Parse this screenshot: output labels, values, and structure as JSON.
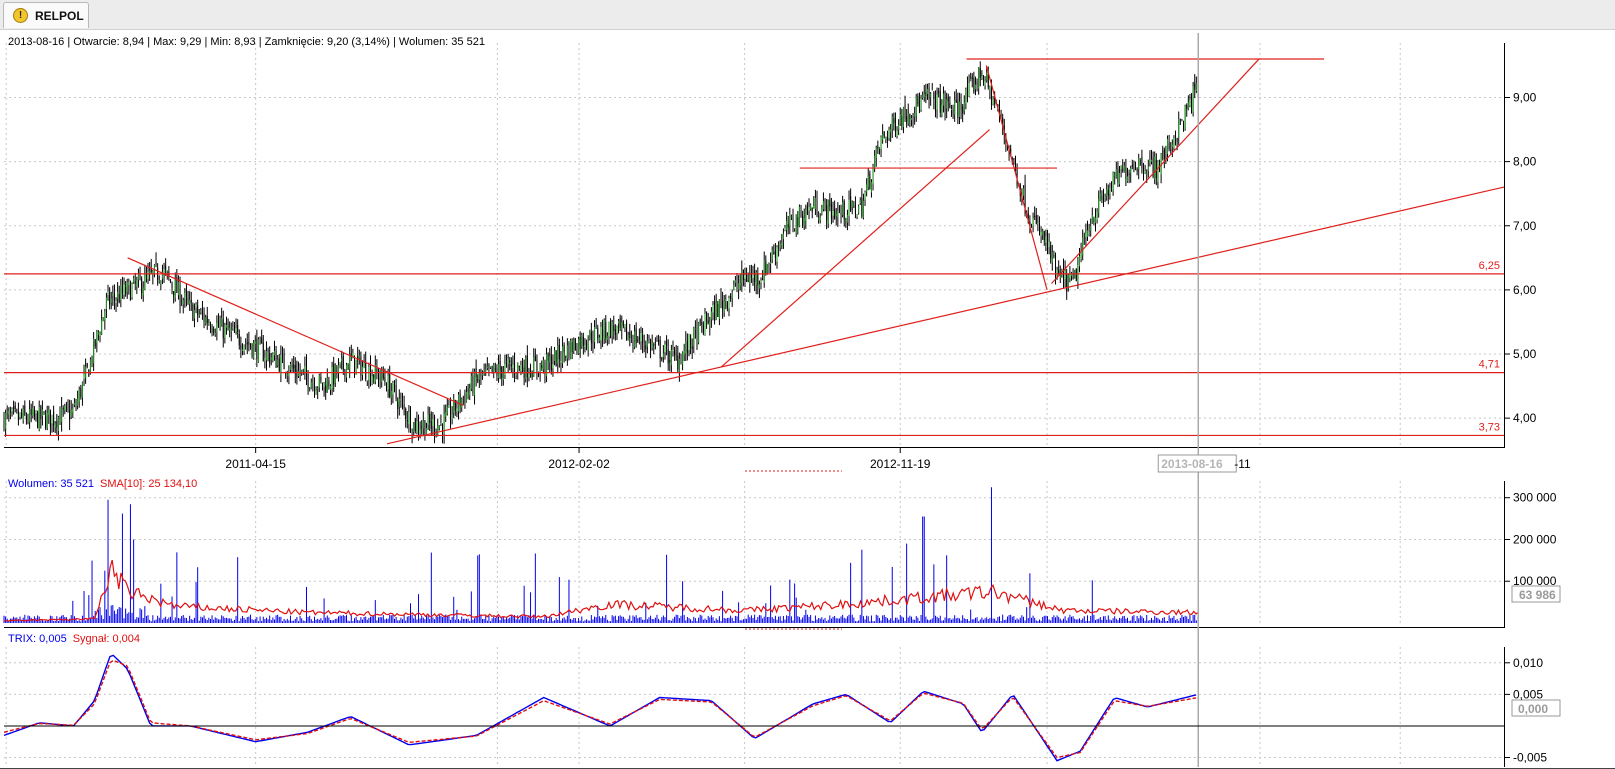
{
  "tab": {
    "title": "RELPOL",
    "icon": "warning-icon"
  },
  "header": {
    "info": "2013-08-16 | Otwarcie: 8,94 | Max: 9,29 | Min: 8,93 | Zamknięcie: 9,20 (3,14%)  | Wolumen: 35 521"
  },
  "colors": {
    "candle": "#000000",
    "trend": "#e0201c",
    "volume": "#0000ee",
    "sma": "#e01010",
    "trix": "#0000ee",
    "signal": "#e01010",
    "grid": "#c8c8c8",
    "cursor": "#aaaaaa"
  },
  "chart_data": [
    {
      "type": "line",
      "pane": "price",
      "series": [
        {
          "x": [
            "2010-08-30",
            "2010-10-15",
            "2010-11-01",
            "2010-11-15",
            "2010-12-01",
            "2011-01-01",
            "2011-01-20",
            "2011-02-15",
            "2011-03-15",
            "2011-04-15",
            "2011-05-15",
            "2011-06-15",
            "2011-07-10",
            "2011-08-10",
            "2011-09-05",
            "2011-10-01",
            "2011-11-01",
            "2011-12-01",
            "2012-01-01",
            "2012-02-02",
            "2012-03-01",
            "2012-04-01",
            "2012-05-01",
            "2012-06-01",
            "2012-07-01",
            "2012-07-15",
            "2012-08-10",
            "2012-09-01",
            "2012-09-25",
            "2012-10-15",
            "2012-11-01",
            "2012-11-19",
            "2012-12-15",
            "2013-01-10",
            "2013-02-01",
            "2013-02-15",
            "2013-03-01",
            "2013-03-15",
            "2013-04-01",
            "2013-04-10",
            "2013-04-25",
            "2013-05-10",
            "2013-06-01",
            "2013-06-20",
            "2013-07-10",
            "2013-08-01",
            "2013-08-16"
          ],
          "y": [
            4.0,
            4.0,
            4.1,
            4.8,
            5.8,
            6.1,
            6.3,
            5.7,
            5.4,
            5.1,
            4.8,
            4.5,
            4.9,
            4.6,
            3.9,
            3.9,
            4.6,
            4.8,
            4.8,
            5.2,
            5.4,
            5.2,
            4.9,
            5.6,
            6.2,
            6.2,
            7.0,
            7.3,
            7.2,
            7.3,
            8.3,
            8.7,
            9.0,
            8.8,
            9.4,
            8.8,
            8.0,
            7.2,
            6.7,
            6.2,
            6.1,
            7.1,
            7.7,
            8.0,
            7.9,
            8.6,
            9.2
          ]
        }
      ],
      "ylim": [
        3.55,
        9.85
      ],
      "yticks": [
        "9,00",
        "8,00",
        "7,00",
        "6,00",
        "5,00",
        "4,00"
      ],
      "xtick_labels": [
        "2011-04-15",
        "2012-02-02",
        "2012-11-19"
      ],
      "cursor_label": "2013-08-16",
      "cursor_label_tail": "-11",
      "levels": [
        {
          "label": "6,25",
          "value": 6.25
        },
        {
          "label": "4,71",
          "value": 4.71
        },
        {
          "label": "3,73",
          "value": 3.73
        }
      ],
      "trendlines": [
        {
          "from": [
            "2010-12-20",
            6.5
          ],
          "to": [
            "2011-10-20",
            4.2
          ]
        },
        {
          "from": [
            "2011-08-12",
            3.6
          ],
          "to": [
            "2013-08-14",
            6.5
          ],
          "extended": true
        },
        {
          "from": [
            "2012-06-10",
            4.8
          ],
          "to": [
            "2013-02-08",
            8.5
          ]
        },
        {
          "from": [
            "2012-08-20",
            7.9
          ],
          "to": [
            "2013-04-10",
            7.9
          ]
        },
        {
          "from": [
            "2013-01-18",
            9.6
          ],
          "to": [
            "2013-12-08",
            9.6
          ]
        },
        {
          "from": [
            "2013-02-05",
            9.5
          ],
          "to": [
            "2013-04-01",
            6.0
          ]
        },
        {
          "from": [
            "2013-04-05",
            6.1
          ],
          "to": [
            "2013-10-10",
            9.6
          ]
        }
      ]
    },
    {
      "type": "bar",
      "pane": "volume",
      "title_parts": [
        "Wolumen: 35 521",
        "SMA[10]: 25 134,10"
      ],
      "series": [
        {
          "name": "Wolumen",
          "peak_examples": [
            [
              "2010-12-02",
              295000
            ],
            [
              "2010-12-25",
              200000
            ],
            [
              "2013-02-10",
              325000
            ],
            [
              "2012-12-10",
              255000
            ],
            [
              "2012-11-25",
              190000
            ]
          ]
        },
        {
          "name": "SMA[10]",
          "x": [
            "2010-08-30",
            "2010-11-20",
            "2010-12-05",
            "2010-12-20",
            "2011-02-01",
            "2011-06-01",
            "2012-01-01",
            "2012-03-01",
            "2012-07-01",
            "2012-10-01",
            "2013-02-10",
            "2013-04-15",
            "2013-08-16"
          ],
          "y": [
            5000,
            10000,
            130000,
            75000,
            40000,
            25000,
            15000,
            45000,
            30000,
            45000,
            75000,
            30000,
            25134
          ]
        }
      ],
      "ylim": [
        0,
        340000
      ],
      "yticks": [
        "300 000",
        "200 000",
        "100 000"
      ],
      "value_box": "63 986"
    },
    {
      "type": "line",
      "pane": "trix",
      "title_parts": [
        "TRIX: 0,005",
        "Sygnał: 0,004"
      ],
      "series": [
        {
          "name": "TRIX",
          "x": [
            "2010-08-30",
            "2010-10-01",
            "2010-11-01",
            "2010-11-20",
            "2010-12-05",
            "2010-12-20",
            "2011-01-10",
            "2011-02-15",
            "2011-04-15",
            "2011-06-01",
            "2011-07-10",
            "2011-09-01",
            "2011-11-01",
            "2012-01-01",
            "2012-03-01",
            "2012-04-15",
            "2012-06-01",
            "2012-07-10",
            "2012-09-01",
            "2012-10-01",
            "2012-11-10",
            "2012-12-10",
            "2013-01-15",
            "2013-02-01",
            "2013-03-01",
            "2013-04-10",
            "2013-05-01",
            "2013-06-01",
            "2013-07-01",
            "2013-08-16"
          ],
          "y": [
            -0.0015,
            0.0005,
            0.0,
            0.004,
            0.0115,
            0.009,
            0.0,
            0.0,
            -0.0025,
            -0.001,
            0.0015,
            -0.003,
            -0.0015,
            0.0045,
            0.0,
            0.0045,
            0.004,
            -0.002,
            0.0035,
            0.005,
            0.0005,
            0.0055,
            0.0035,
            -0.001,
            0.005,
            -0.0055,
            -0.004,
            0.0045,
            0.003,
            0.005
          ]
        },
        {
          "name": "Sygnał",
          "x": [
            "2010-08-30",
            "2010-10-01",
            "2010-11-01",
            "2010-11-20",
            "2010-12-05",
            "2010-12-20",
            "2011-01-10",
            "2011-02-15",
            "2011-04-15",
            "2011-06-01",
            "2011-07-10",
            "2011-09-01",
            "2011-11-01",
            "2012-01-01",
            "2012-03-01",
            "2012-04-15",
            "2012-06-01",
            "2012-07-10",
            "2012-09-01",
            "2012-10-01",
            "2012-11-10",
            "2012-12-10",
            "2013-01-15",
            "2013-02-01",
            "2013-03-01",
            "2013-04-10",
            "2013-05-01",
            "2013-06-01",
            "2013-07-01",
            "2013-08-16"
          ],
          "y": [
            -0.001,
            0.0004,
            0.0001,
            0.0035,
            0.0105,
            0.0095,
            0.0005,
            0.0,
            -0.0022,
            -0.0012,
            0.0012,
            -0.0026,
            -0.0016,
            0.004,
            0.0003,
            0.0042,
            0.0038,
            -0.0018,
            0.0032,
            0.0048,
            0.0008,
            0.0052,
            0.0036,
            -0.0006,
            0.0046,
            -0.005,
            -0.0042,
            0.004,
            0.0031,
            0.0045
          ]
        }
      ],
      "ylim": [
        -0.0065,
        0.0125
      ],
      "yticks": [
        "0,010",
        "0,005",
        "-0,005"
      ],
      "value_box": "0,000"
    }
  ]
}
